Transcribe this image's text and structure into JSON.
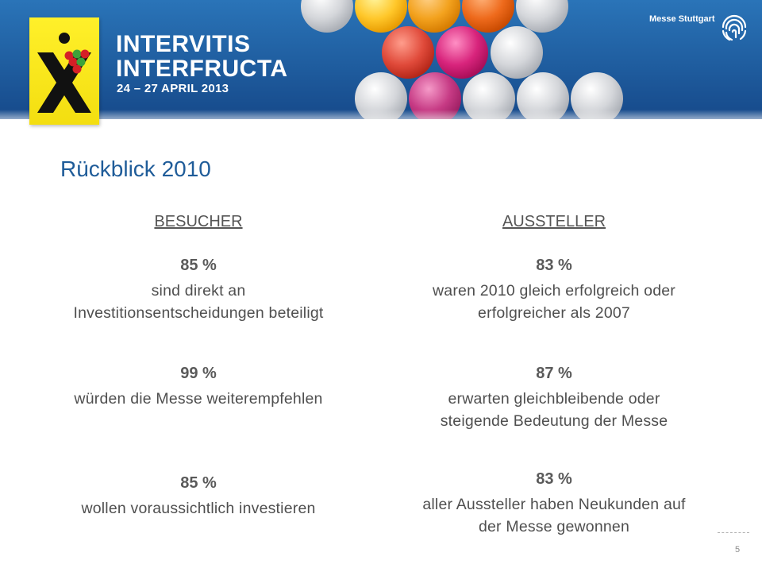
{
  "banner": {
    "event_name_line1": "INTERVITIS",
    "event_name_line2": "INTERFRUCTA",
    "event_date": "24 – 27 APRIL 2013",
    "organizer": "Messe Stuttgart",
    "colors": {
      "banner_blue": "#1f5d9f",
      "logo_yellow": "#f6e41a",
      "title_blue": "#1f5c99"
    }
  },
  "slide": {
    "title": "Rückblick 2010",
    "page_number": "5"
  },
  "visitors": {
    "heading": "BESUCHER",
    "stats": [
      {
        "percent": "85 %",
        "line1": "sind direkt an",
        "line2": "Investitionsentscheidungen beteiligt"
      },
      {
        "percent": "99 %",
        "line1": "würden die Messe weiterempfehlen",
        "line2": ""
      },
      {
        "percent": "85 %",
        "line1": "wollen voraussichtlich investieren",
        "line2": ""
      }
    ]
  },
  "exhibitors": {
    "heading": "AUSSTELLER",
    "stats": [
      {
        "percent": "83 %",
        "line1": "waren 2010 gleich erfolgreich oder",
        "line2": "erfolgreicher als 2007"
      },
      {
        "percent": "87 %",
        "line1": "erwarten gleichbleibende oder",
        "line2": "steigende Bedeutung der Messe"
      },
      {
        "percent": "83 %",
        "line1": "aller Aussteller haben Neukunden auf",
        "line2": "der Messe gewonnen"
      }
    ]
  }
}
